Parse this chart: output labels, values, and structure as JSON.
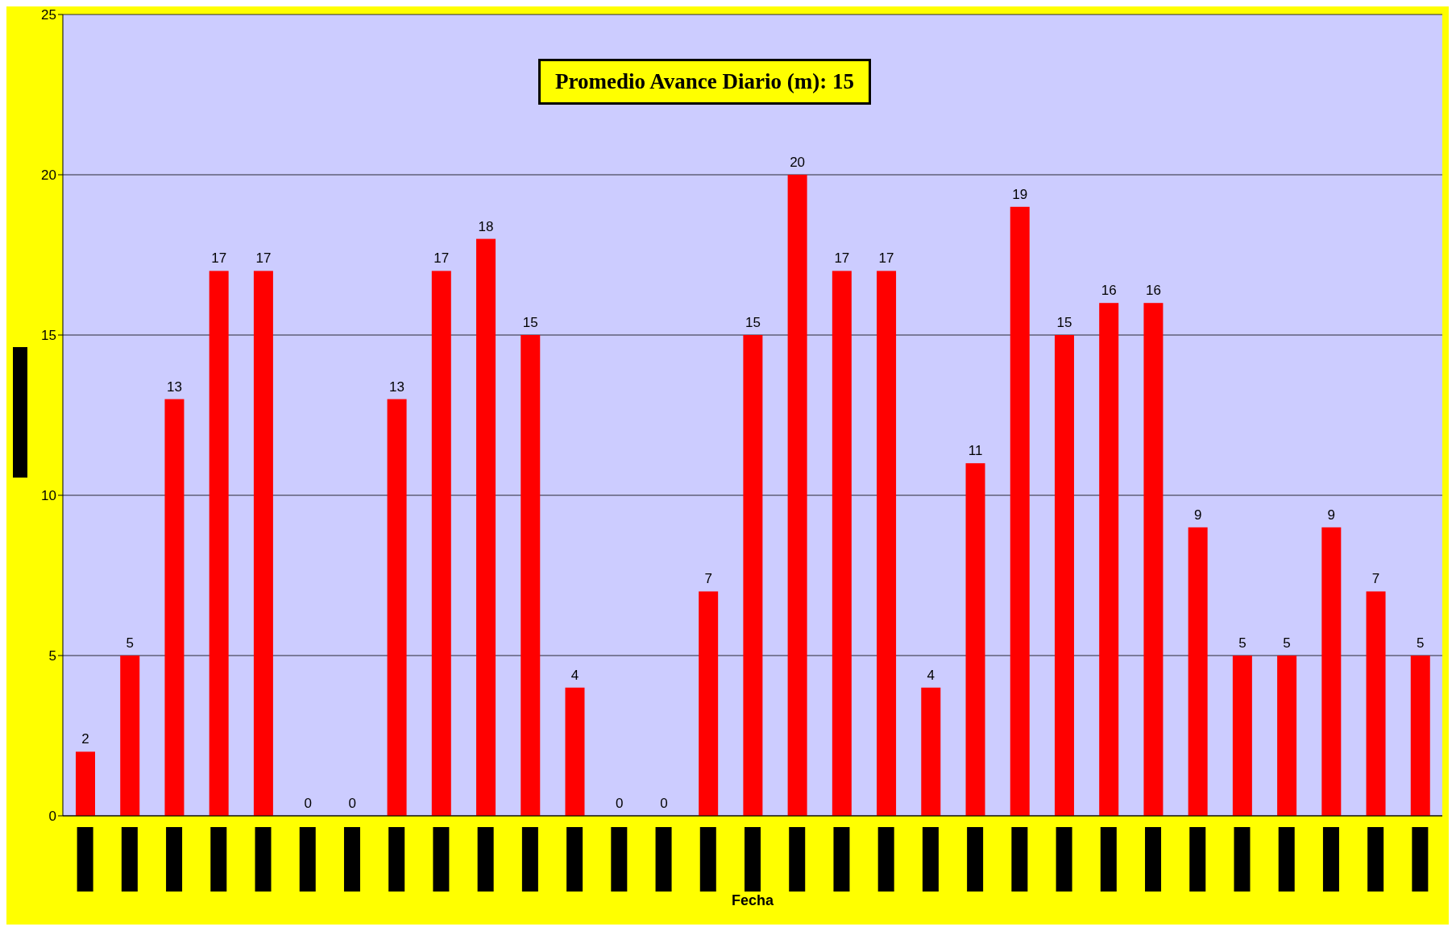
{
  "chart_data": {
    "type": "bar",
    "xlabel": "Fecha",
    "categories": [
      null,
      null,
      null,
      null,
      null,
      null,
      null,
      null,
      null,
      null,
      null,
      null,
      null,
      null,
      null,
      null,
      null,
      null,
      null,
      null,
      null,
      null,
      null,
      null,
      null,
      null,
      null,
      null,
      null,
      null,
      null
    ],
    "values": [
      2,
      5,
      13,
      17,
      17,
      0,
      0,
      13,
      17,
      18,
      15,
      4,
      0,
      0,
      7,
      15,
      20,
      17,
      17,
      4,
      11,
      19,
      15,
      16,
      16,
      9,
      5,
      5,
      9,
      7,
      5
    ],
    "color": "#ff0000",
    "ylim": [
      0,
      25
    ],
    "yticks": [
      0,
      5,
      10,
      15,
      20,
      25
    ],
    "grid": "y",
    "data_labels": true,
    "annotations": [
      "Promedio Avance Diario (m): 15"
    ]
  }
}
